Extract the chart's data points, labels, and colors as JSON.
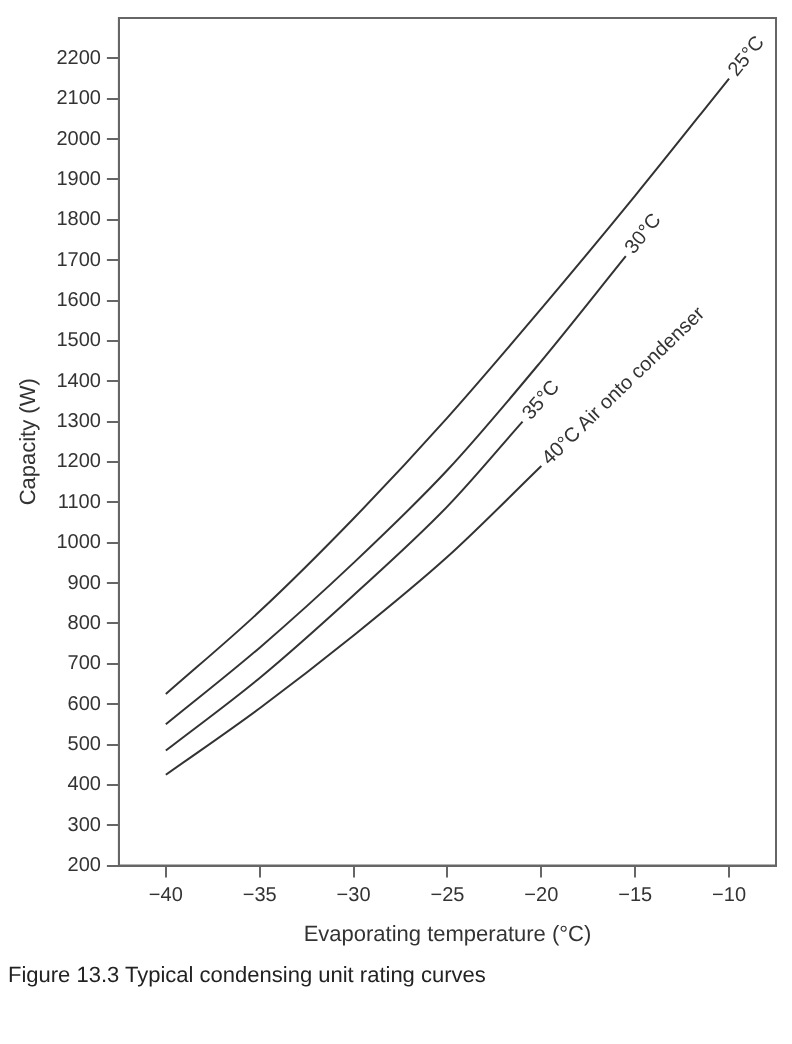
{
  "chart_data": {
    "type": "line",
    "xlabel": "Evaporating temperature (°C)",
    "ylabel": "Capacity (W)",
    "xlim": [
      -42.5,
      -7.5
    ],
    "xticks": [
      {
        "value": -40,
        "label": "−40"
      },
      {
        "value": -35,
        "label": "−35"
      },
      {
        "value": -30,
        "label": "−30"
      },
      {
        "value": -25,
        "label": "−25"
      },
      {
        "value": -20,
        "label": "−20"
      },
      {
        "value": -15,
        "label": "−15"
      },
      {
        "value": -10,
        "label": "−10"
      }
    ],
    "ylim": [
      200,
      2300
    ],
    "yticks": [
      200,
      300,
      400,
      500,
      600,
      700,
      800,
      900,
      1000,
      1100,
      1200,
      1300,
      1400,
      1500,
      1600,
      1700,
      1800,
      1900,
      2000,
      2100,
      2200
    ],
    "grid": false,
    "legend": false,
    "marker": "none",
    "line_style": "solid",
    "series": [
      {
        "name": "25°C",
        "color": "#333333",
        "x": [
          -40,
          -35,
          -30,
          -25,
          -20,
          -15,
          -10
        ],
        "values": [
          625,
          830,
          1060,
          1310,
          1580,
          1860,
          2150
        ]
      },
      {
        "name": "30°C",
        "color": "#333333",
        "x": [
          -40,
          -35,
          -30,
          -25,
          -20,
          -15.5
        ],
        "values": [
          550,
          740,
          950,
          1180,
          1450,
          1710
        ]
      },
      {
        "name": "35°C",
        "color": "#333333",
        "x": [
          -40,
          -35,
          -30,
          -25,
          -21
        ],
        "values": [
          485,
          665,
          870,
          1090,
          1300
        ]
      },
      {
        "name": "40°C Air onto condenser",
        "color": "#333333",
        "x": [
          -40,
          -35,
          -30,
          -25,
          -20
        ],
        "values": [
          425,
          590,
          770,
          965,
          1190
        ]
      }
    ],
    "annotations": [
      "Figure 13.3 Typical condensing unit rating curves"
    ]
  }
}
